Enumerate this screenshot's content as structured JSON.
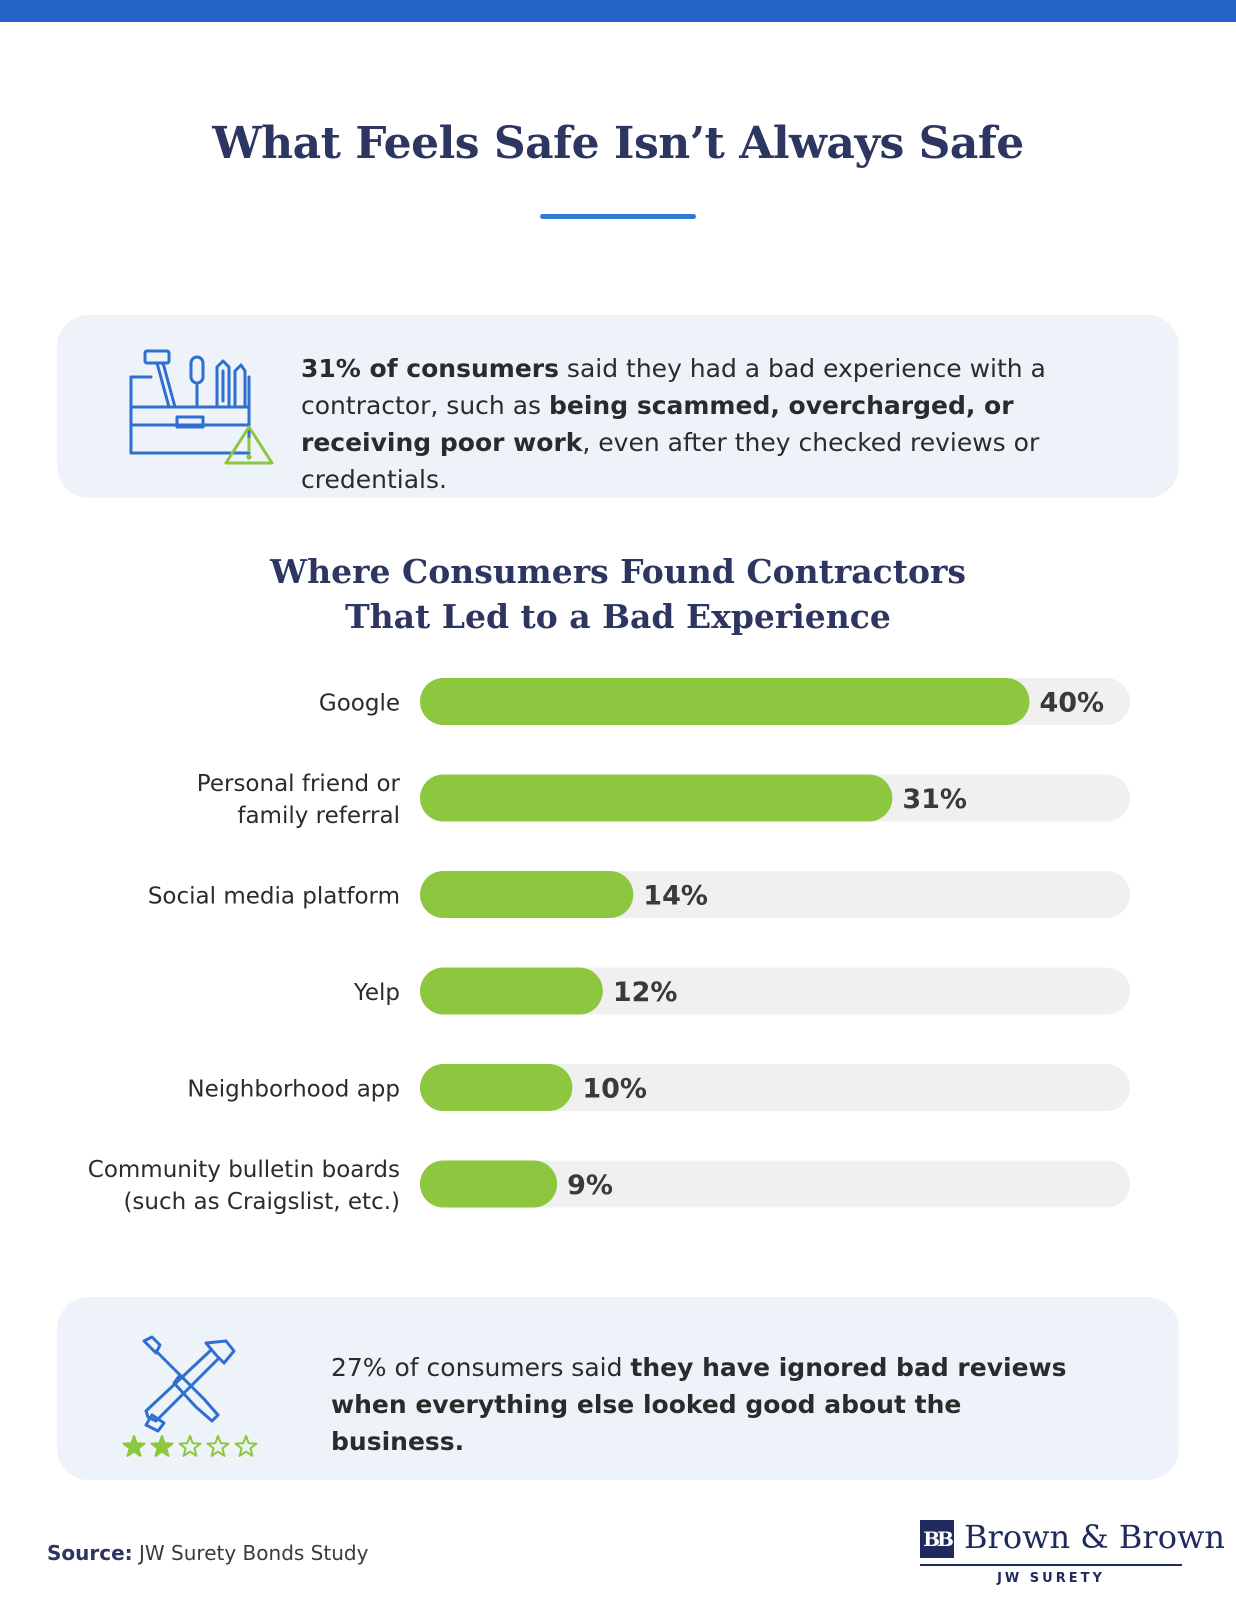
{
  "header": {
    "title": "What Feels Safe Isn’t Always Safe"
  },
  "top_card": {
    "icon": "toolbox-warning-icon",
    "text_bold_1": "31% of consumers",
    "text_1": " said they had a bad experience with a contractor, such as ",
    "text_bold_2": "being scammed, overcharged, or receiving poor work",
    "text_2": ", even after they checked reviews or credentials."
  },
  "chart_data": {
    "type": "bar",
    "orientation": "horizontal",
    "title_line1": "Where Consumers Found Contractors",
    "title_line2": "That Led to a Bad Experience",
    "categories": [
      [
        "Google"
      ],
      [
        "Personal friend or",
        "family referral"
      ],
      [
        "Social media platform"
      ],
      [
        "Yelp"
      ],
      [
        "Neighborhood app"
      ],
      [
        "Community bulletin boards",
        "(such as Craigslist, etc.)"
      ]
    ],
    "values": [
      40,
      31,
      14,
      12,
      10,
      9
    ],
    "value_labels": [
      "40%",
      "31%",
      "14%",
      "12%",
      "10%",
      "9%"
    ],
    "xlim": [
      0,
      46.6
    ],
    "bar_color": "#8dc63f",
    "track_color": "#f0f0f0",
    "grid": false,
    "legend": "none"
  },
  "bottom_card": {
    "icon": "tools-rating-icon",
    "rating": {
      "filled": 2,
      "total": 5
    },
    "text_1": "27% of consumers said ",
    "text_bold_1": "they have ignored bad reviews when everything else looked good about the business."
  },
  "footer": {
    "source_label": "Source:",
    "source_text": " JW Surety Bonds Study",
    "logo_mark": "BB",
    "logo_name": "Brown & Brown",
    "logo_sub": "JW SURETY"
  },
  "colors": {
    "accent_blue": "#2563c9",
    "navy": "#2d3561",
    "green": "#8dc63f",
    "card_bg": "#eef3fa"
  }
}
